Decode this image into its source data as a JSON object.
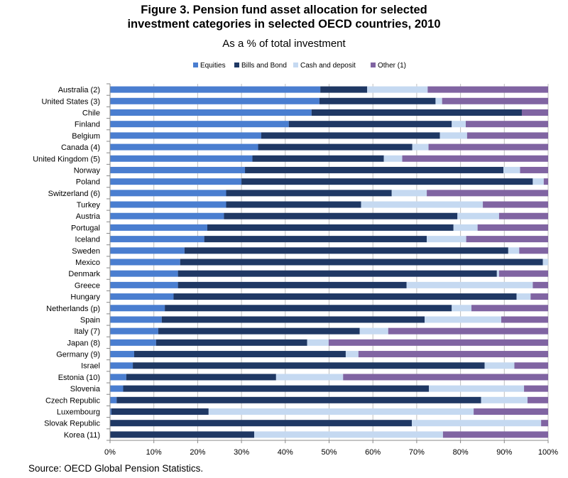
{
  "title_line1": "Figure 3. Pension fund asset allocation for selected",
  "title_line2": "investment categories in selected OECD countries, 2010",
  "subtitle": "As a % of total investment",
  "source": "Source: OECD Global Pension Statistics.",
  "chart_data": {
    "type": "bar",
    "orientation": "horizontal",
    "stacked": true,
    "title": "Figure 3. Pension fund asset allocation for selected investment categories in selected OECD countries, 2010",
    "subtitle": "As a % of total investment",
    "xlabel": "",
    "ylabel": "",
    "xlim": [
      0,
      100
    ],
    "x_ticks": [
      "0%",
      "10%",
      "20%",
      "30%",
      "40%",
      "50%",
      "60%",
      "70%",
      "80%",
      "90%",
      "100%"
    ],
    "grid": "vertical",
    "legend_position": "top",
    "categories": [
      "Australia (2)",
      "United States (3)",
      "Chile",
      "Finland",
      "Belgium",
      "Canada (4)",
      "United Kingdom (5)",
      "Norway",
      "Poland",
      "Switzerland (6)",
      "Turkey",
      "Austria",
      "Portugal",
      "Iceland",
      "Sweden",
      "Mexico",
      "Denmark",
      "Greece",
      "Hungary",
      "Netherlands (p)",
      "Spain",
      "Italy (7)",
      "Japan (8)",
      "Germany (9)",
      "Israel",
      "Estonia (10)",
      "Slovenia",
      "Czech Republic",
      "Luxembourg",
      "Slovak Republic",
      "Korea (11)"
    ],
    "series": [
      {
        "name": "Equities",
        "color": "#4a7ed0",
        "values": [
          48,
          47.8,
          46,
          40.8,
          34.5,
          33.8,
          32.5,
          30.8,
          30,
          26.5,
          26.5,
          26,
          22.2,
          21.5,
          17,
          16,
          15.5,
          15.5,
          14.5,
          12.5,
          11.8,
          11,
          10.5,
          5.5,
          5.2,
          3.7,
          3,
          1.5,
          0.3,
          0,
          0
        ]
      },
      {
        "name": "Bills and Bond",
        "color": "#1f3864",
        "values": [
          10.7,
          26.5,
          48,
          37.2,
          40.8,
          35.2,
          30,
          59,
          66.5,
          37.8,
          30.8,
          53.3,
          56.2,
          50.8,
          73.9,
          82.8,
          72.8,
          52.2,
          78.3,
          65.5,
          60,
          46,
          34.5,
          48.3,
          80.3,
          34.2,
          69.8,
          83.2,
          22.2,
          68.9,
          32.9
        ]
      },
      {
        "name": "Cash and deposit",
        "color": "#c5d9f1",
        "values": [
          13.8,
          1.5,
          0,
          3.2,
          6.2,
          3.7,
          4.2,
          3.8,
          2.5,
          8,
          27.8,
          9.5,
          5.5,
          9,
          2.5,
          1.2,
          0.5,
          28.8,
          3.2,
          4.5,
          17.5,
          6.5,
          4.9,
          2.9,
          6.8,
          15.3,
          21.7,
          10.6,
          60.5,
          29.5,
          43.1
        ]
      },
      {
        "name": "Other (1)",
        "color": "#8064a2",
        "values": [
          27.5,
          24.2,
          6,
          18.8,
          18.5,
          27.3,
          33.3,
          6.4,
          1,
          27.7,
          14.9,
          11.2,
          16.1,
          18.7,
          6.6,
          0,
          11.2,
          3.5,
          4,
          17.5,
          10.7,
          36.5,
          50.1,
          43.3,
          7.7,
          46.8,
          5.5,
          4.7,
          17,
          1.6,
          24
        ]
      }
    ]
  }
}
